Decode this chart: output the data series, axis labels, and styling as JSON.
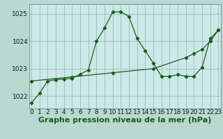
{
  "title": "Graphe pression niveau de la mer (hPa)",
  "plot_bg_color": "#cce8e8",
  "fig_bg_color": "#b8d8d0",
  "grid_color": "#99bbbb",
  "line_color": "#1a5c1a",
  "xlim": [
    -0.3,
    23.3
  ],
  "ylim": [
    1021.55,
    1025.35
  ],
  "yticks": [
    1022,
    1023,
    1024,
    1025
  ],
  "xtick_labels": [
    "0",
    "1",
    "2",
    "3",
    "4",
    "5",
    "6",
    "7",
    "8",
    "9",
    "10",
    "11",
    "12",
    "13",
    "14",
    "15",
    "16",
    "17",
    "18",
    "19",
    "20",
    "21",
    "22",
    "23"
  ],
  "series1_x": [
    0,
    1,
    2,
    3,
    4,
    5,
    6,
    7,
    8,
    9,
    10,
    11,
    12,
    13,
    14,
    15,
    16,
    17,
    18,
    19,
    20,
    21,
    22,
    23
  ],
  "series1_y": [
    1021.75,
    1022.1,
    1022.55,
    1022.6,
    1022.62,
    1022.65,
    1022.8,
    1022.95,
    1024.0,
    1024.48,
    1025.07,
    1025.07,
    1024.9,
    1024.1,
    1023.65,
    1023.2,
    1022.72,
    1022.72,
    1022.78,
    1022.72,
    1022.72,
    1023.05,
    1024.1,
    1024.4
  ],
  "series2_x": [
    0,
    1,
    2,
    3,
    4,
    5,
    6,
    7,
    8,
    9,
    10,
    11,
    12,
    13,
    14,
    15,
    16,
    17,
    18,
    19,
    20,
    21,
    22,
    23
  ],
  "series2_y": [
    1022.55,
    1022.58,
    1022.61,
    1022.64,
    1022.67,
    1022.7,
    1022.73,
    1022.76,
    1022.79,
    1022.82,
    1022.85,
    1022.88,
    1022.91,
    1022.94,
    1022.97,
    1023.0,
    1023.1,
    1023.2,
    1023.3,
    1023.4,
    1023.55,
    1023.7,
    1024.0,
    1024.4
  ],
  "title_fontsize": 8,
  "tick_fontsize": 6.5
}
